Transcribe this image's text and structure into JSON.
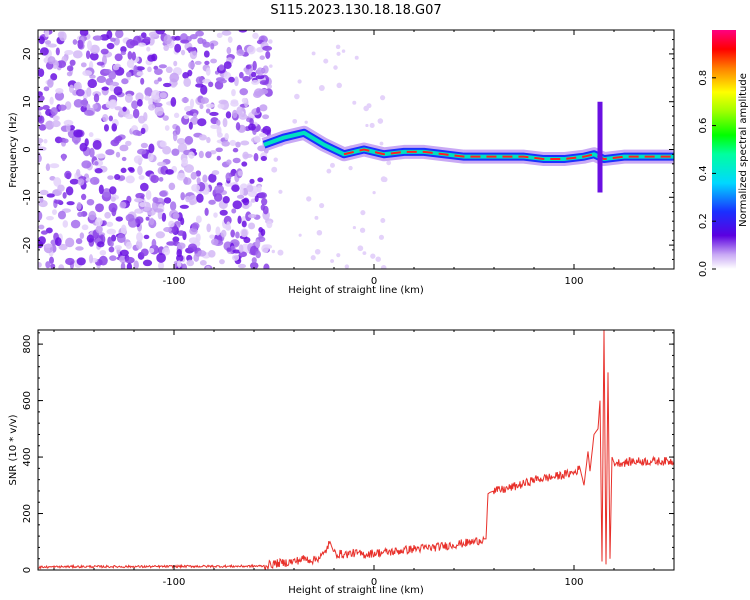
{
  "figure": {
    "title": "S115.2023.130.18.18.G07"
  },
  "chart_data": [
    {
      "type": "heatmap",
      "xlabel": "Height of straight line (km)",
      "ylabel": "Frequency (Hz)",
      "xlim": [
        -168,
        150
      ],
      "ylim": [
        -25,
        25
      ],
      "x_ticks": [
        -100,
        0,
        100
      ],
      "y_ticks": [
        -20,
        -10,
        0,
        10,
        20
      ],
      "colorbar": {
        "label": "Normalized spectral amplitude",
        "range": [
          0,
          1
        ],
        "ticks": [
          "0.0",
          "0.2",
          "0.4",
          "0.6",
          "0.8"
        ]
      },
      "ridge": {
        "description_points_x": [
          -55,
          -45,
          -35,
          -25,
          -15,
          -5,
          5,
          15,
          25,
          35,
          45,
          55,
          65,
          75,
          85,
          95,
          105,
          110,
          115,
          125,
          135,
          150
        ],
        "frequency_hz": [
          1.0,
          2.5,
          3.5,
          1.0,
          -1.0,
          0.0,
          -1.0,
          -0.5,
          -0.5,
          -1.0,
          -1.5,
          -1.5,
          -1.5,
          -1.5,
          -2.0,
          -2.0,
          -1.5,
          -1.0,
          -2.0,
          -1.5,
          -1.5,
          -1.5
        ]
      }
    },
    {
      "type": "line",
      "xlabel": "Height of straight line (km)",
      "ylabel": "SNR (10 * v/v)",
      "xlim": [
        -168,
        150
      ],
      "ylim": [
        0,
        850
      ],
      "x_ticks": [
        -100,
        0,
        100
      ],
      "y_ticks": [
        0,
        200,
        400,
        600,
        800
      ],
      "series": [
        {
          "color": "#e8302a",
          "x": [
            -168,
            -150,
            -130,
            -110,
            -90,
            -70,
            -55,
            -50,
            -40,
            -35,
            -30,
            -25,
            -22,
            -20,
            -15,
            -10,
            -5,
            0,
            10,
            20,
            30,
            40,
            50,
            55,
            56,
            57,
            58,
            60,
            65,
            70,
            75,
            80,
            90,
            100,
            103,
            105,
            107,
            108,
            110,
            112,
            113,
            114,
            115,
            116,
            117,
            118,
            119,
            120,
            125,
            130,
            140,
            150
          ],
          "y": [
            10,
            12,
            12,
            12,
            13,
            13,
            14,
            22,
            30,
            40,
            35,
            55,
            100,
            60,
            55,
            60,
            55,
            60,
            65,
            75,
            80,
            90,
            100,
            110,
            110,
            270,
            275,
            280,
            285,
            295,
            305,
            320,
            330,
            345,
            360,
            300,
            420,
            350,
            480,
            500,
            600,
            30,
            850,
            20,
            700,
            40,
            400,
            380,
            380,
            385,
            385,
            385
          ]
        }
      ]
    }
  ]
}
